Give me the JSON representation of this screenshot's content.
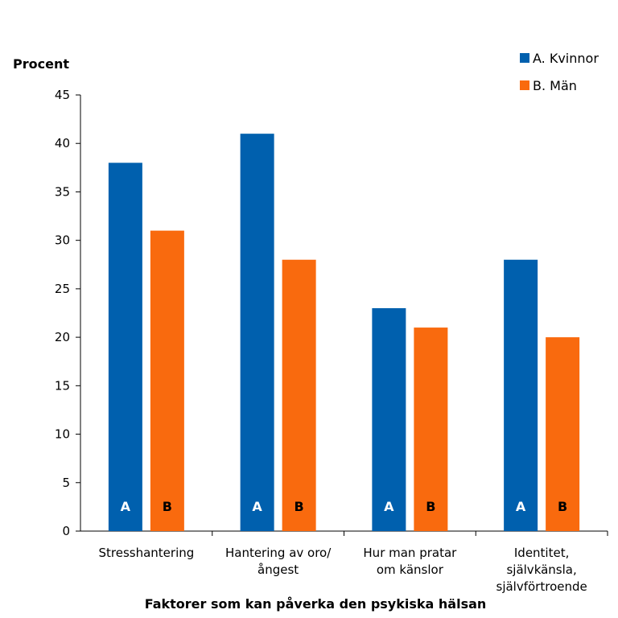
{
  "chart_data": {
    "type": "bar",
    "title": "",
    "ylabel": "Procent",
    "xlabel": "Faktorer som kan påverka den psykiska hälsan",
    "ylim": [
      0,
      45
    ],
    "yticks": [
      0,
      5,
      10,
      15,
      20,
      25,
      30,
      35,
      40,
      45
    ],
    "categories": [
      [
        "Stresshantering"
      ],
      [
        "Hantering av oro/",
        "ångest"
      ],
      [
        "Hur man pratar",
        "om känslor"
      ],
      [
        "Identitet,",
        "självkänsla,",
        "självförtroende"
      ]
    ],
    "series": [
      {
        "name": "A. Kvinnor",
        "letter": "A",
        "color": "#0060AE",
        "letter_color": "#ffffff",
        "values": [
          38,
          41,
          23,
          28
        ]
      },
      {
        "name": "B. Män",
        "letter": "B",
        "color": "#F96A0E",
        "letter_color": "#000000",
        "values": [
          31,
          28,
          21,
          20
        ]
      }
    ],
    "legend_position": "top-right",
    "grid": false
  }
}
